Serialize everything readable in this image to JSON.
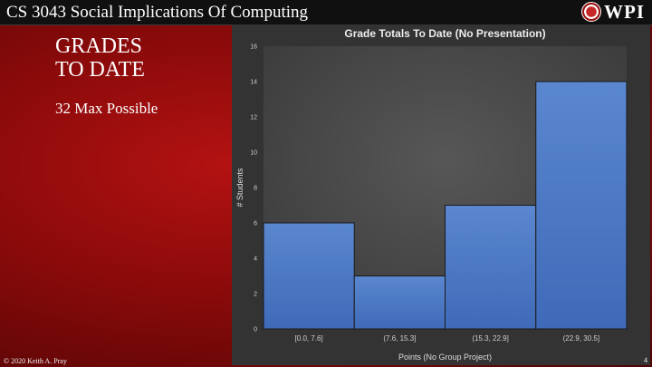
{
  "header": {
    "course_title": "CS 3043 Social Implications Of Computing",
    "logo_text": "WPI"
  },
  "slide": {
    "heading_line1": "GRADES",
    "heading_line2": "TO DATE",
    "subtext": "32 Max Possible"
  },
  "footer": {
    "copyright": "© 2020 Keith A. Pray",
    "page_number": "4"
  },
  "colors": {
    "bar_fill": "#4472c4",
    "panel_bg": "#333333",
    "plot_bg": "#444444"
  },
  "chart_data": {
    "type": "bar",
    "title": "Grade Totals To Date (No Presentation)",
    "xlabel": "Points (No Group Project)",
    "ylabel": "# Students",
    "categories": [
      "[0.0, 7.6]",
      "(7.6, 15.3]",
      "(15.3, 22.9]",
      "(22.9, 30.5]"
    ],
    "values": [
      6,
      3,
      7,
      14
    ],
    "ylim": [
      0,
      16
    ],
    "yticks": [
      0,
      2,
      4,
      6,
      8,
      10,
      12,
      14,
      16
    ],
    "grid": false,
    "legend": "none"
  }
}
